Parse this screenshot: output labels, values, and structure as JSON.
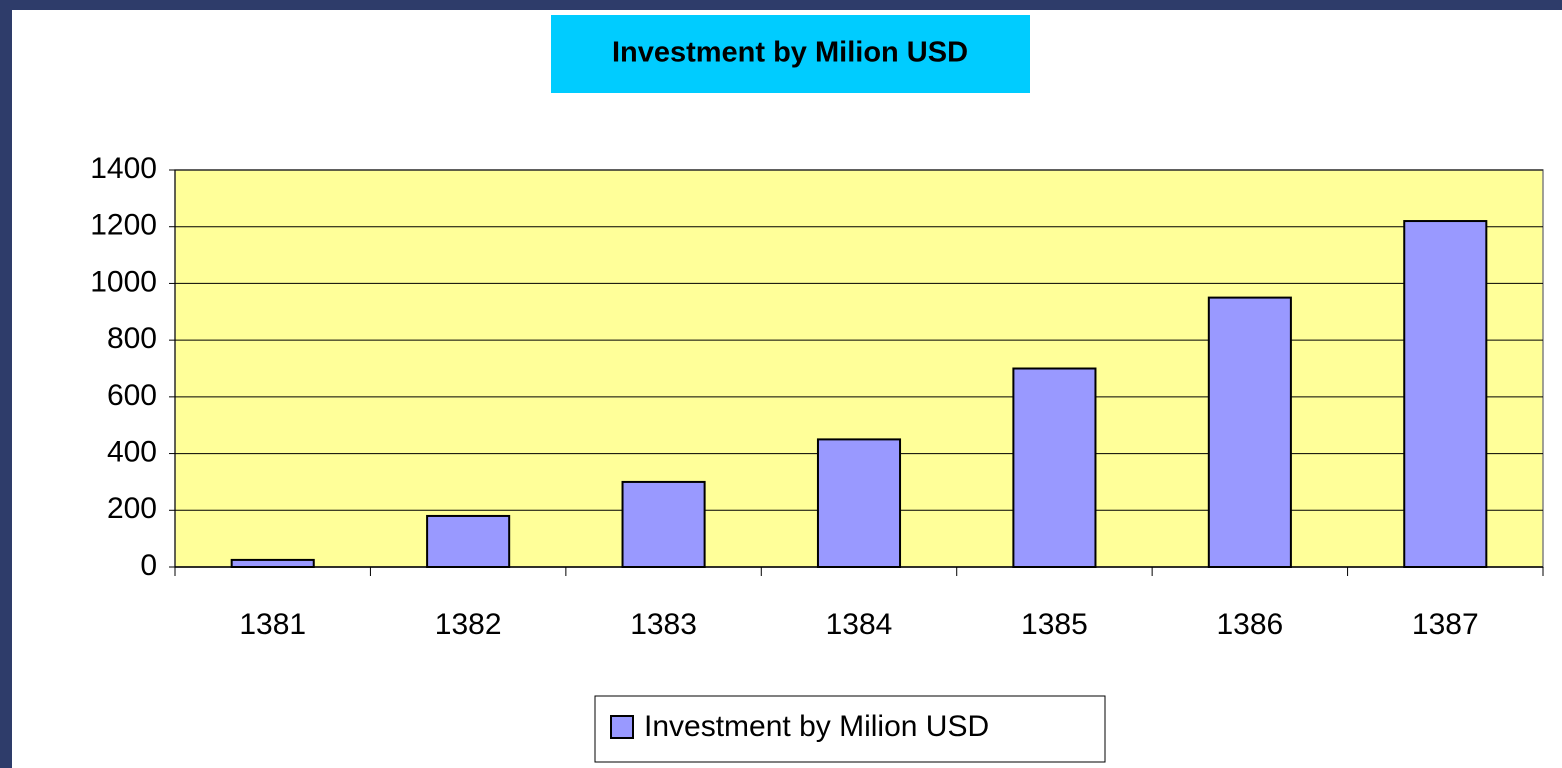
{
  "chart_data": {
    "type": "bar",
    "title": "Investment by Milion USD",
    "categories": [
      "1381",
      "1382",
      "1383",
      "1384",
      "1385",
      "1386",
      "1387"
    ],
    "series": [
      {
        "name": "Investment by Milion USD",
        "color": "#9999ff",
        "values": [
          25,
          180,
          300,
          450,
          700,
          950,
          1220
        ]
      }
    ],
    "ylim": [
      0,
      1400
    ],
    "yticks": [
      0,
      200,
      400,
      600,
      800,
      1000,
      1200,
      1400
    ],
    "grid": true,
    "plot_background": "#ffff99",
    "title_background": "#00ccff",
    "legend": "bottom"
  }
}
